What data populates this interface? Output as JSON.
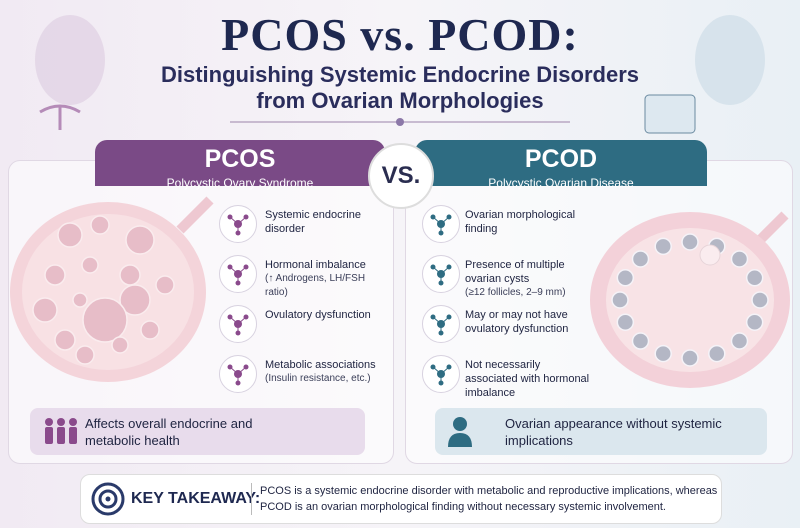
{
  "header": {
    "title": "PCOS vs. PCOD:",
    "subtitle": [
      "Distinguishing Systemic Endocrine Disorders",
      "from Ovarian Morphologies"
    ]
  },
  "vs": "VS.",
  "left": {
    "title": "PCOS",
    "subtitle": "Polycystic Ovary Syndrome",
    "items": [
      {
        "text": "Systemic endocrine disorder"
      },
      {
        "text": "Hormonal imbalance",
        "detail": "(↑ Androgens, LH/FSH ratio)"
      },
      {
        "text": "Ovulatory dysfunction"
      },
      {
        "text": "Metabolic associations",
        "detail": "(Insulin resistance, etc.)"
      }
    ],
    "footer": "Affects overall endocrine and metabolic health"
  },
  "right": {
    "title": "PCOD",
    "subtitle": "Polycystic Ovarian Disease",
    "items": [
      {
        "text": "Ovarian morphological finding"
      },
      {
        "text": "Presence of multiple ovarian cysts",
        "detail": "(≥12 follicles, 2–9 mm)"
      },
      {
        "text": "May or may not have ovulatory dysfunction"
      },
      {
        "text": "Not necessarily associated with hormonal imbalance"
      }
    ],
    "footer": "Ovarian appearance without systemic implications"
  },
  "takeaway": {
    "label": "KEY TAKEAWAY:",
    "text": "PCOS is a systemic endocrine disorder with metabolic and reproductive implications, whereas PCOD is an ovarian morphological finding without necessary systemic involvement."
  }
}
